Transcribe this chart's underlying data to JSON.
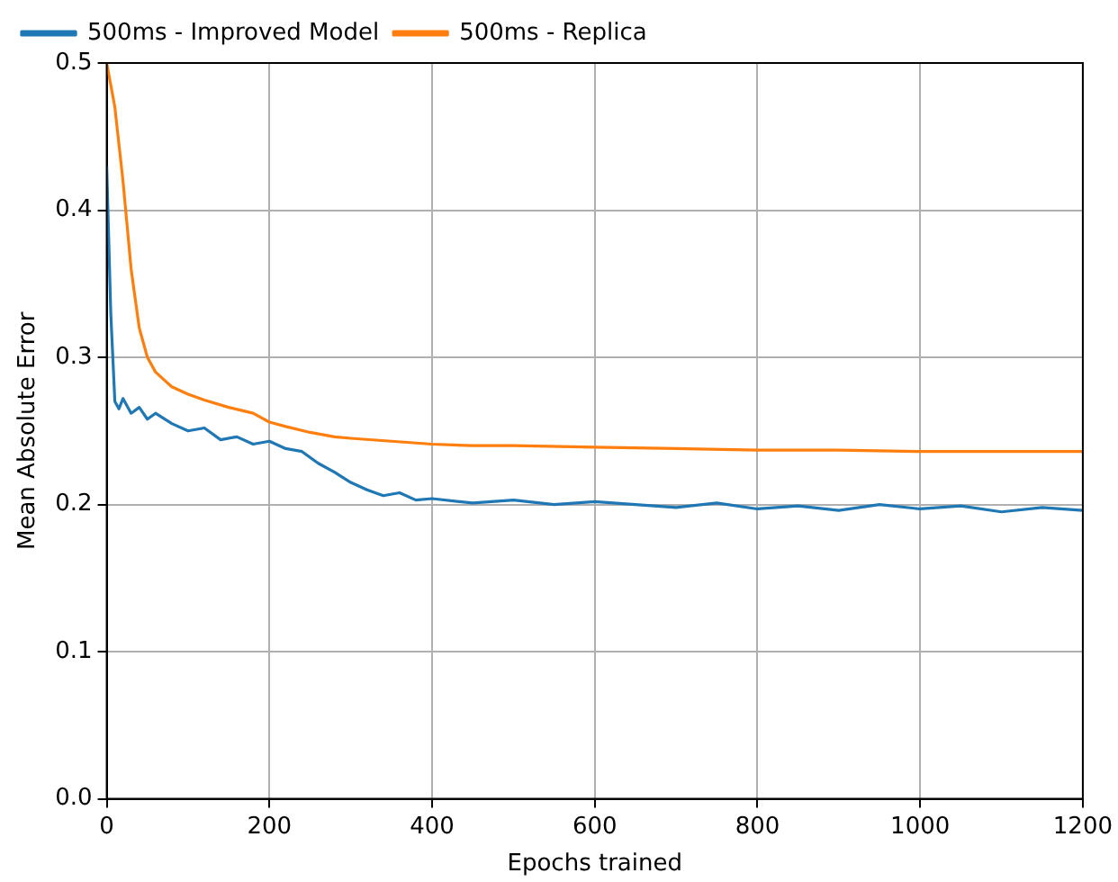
{
  "chart_data": {
    "type": "line",
    "xlabel": "Epochs trained",
    "ylabel": "Mean Absolute Error",
    "xlim": [
      0,
      1200
    ],
    "xticks": [
      0,
      200,
      400,
      600,
      800,
      1000,
      1200
    ],
    "ylim": [
      0,
      0.5
    ],
    "yticks": [
      {
        "value": 0,
        "label": "0.0"
      },
      {
        "value": 0.1,
        "label": "0.1"
      },
      {
        "value": 0.2,
        "label": "0.2"
      },
      {
        "value": 0.3,
        "label": "0.3"
      },
      {
        "value": 0.4,
        "label": "0.4"
      },
      {
        "value": 0.5,
        "label": "0.5"
      }
    ],
    "grid": true,
    "legend": "top",
    "marker": "none",
    "line_style": "solid",
    "series": [
      {
        "name": "500ms - Improved Model",
        "color": "#1f77b4",
        "x": [
          0,
          5,
          10,
          15,
          20,
          30,
          40,
          50,
          60,
          80,
          100,
          120,
          140,
          160,
          180,
          200,
          220,
          240,
          260,
          280,
          300,
          320,
          340,
          360,
          380,
          400,
          450,
          500,
          550,
          600,
          650,
          700,
          750,
          800,
          850,
          900,
          950,
          1000,
          1050,
          1100,
          1150,
          1200
        ],
        "values": [
          0.43,
          0.33,
          0.27,
          0.265,
          0.272,
          0.262,
          0.266,
          0.258,
          0.262,
          0.255,
          0.25,
          0.252,
          0.244,
          0.246,
          0.241,
          0.243,
          0.238,
          0.236,
          0.228,
          0.222,
          0.215,
          0.21,
          0.206,
          0.208,
          0.203,
          0.204,
          0.201,
          0.203,
          0.2,
          0.202,
          0.2,
          0.198,
          0.201,
          0.197,
          0.199,
          0.196,
          0.2,
          0.197,
          0.199,
          0.195,
          0.198,
          0.196
        ]
      },
      {
        "name": "500ms - Replica",
        "color": "#ff7f0e",
        "x": [
          0,
          10,
          20,
          30,
          40,
          50,
          60,
          70,
          80,
          100,
          120,
          150,
          180,
          200,
          220,
          250,
          280,
          300,
          350,
          400,
          450,
          500,
          600,
          700,
          800,
          900,
          1000,
          1100,
          1200
        ],
        "values": [
          0.5,
          0.47,
          0.42,
          0.36,
          0.32,
          0.3,
          0.29,
          0.285,
          0.28,
          0.275,
          0.271,
          0.266,
          0.262,
          0.256,
          0.253,
          0.249,
          0.246,
          0.245,
          0.243,
          0.241,
          0.24,
          0.24,
          0.239,
          0.238,
          0.237,
          0.237,
          0.236,
          0.236,
          0.236
        ]
      }
    ]
  }
}
